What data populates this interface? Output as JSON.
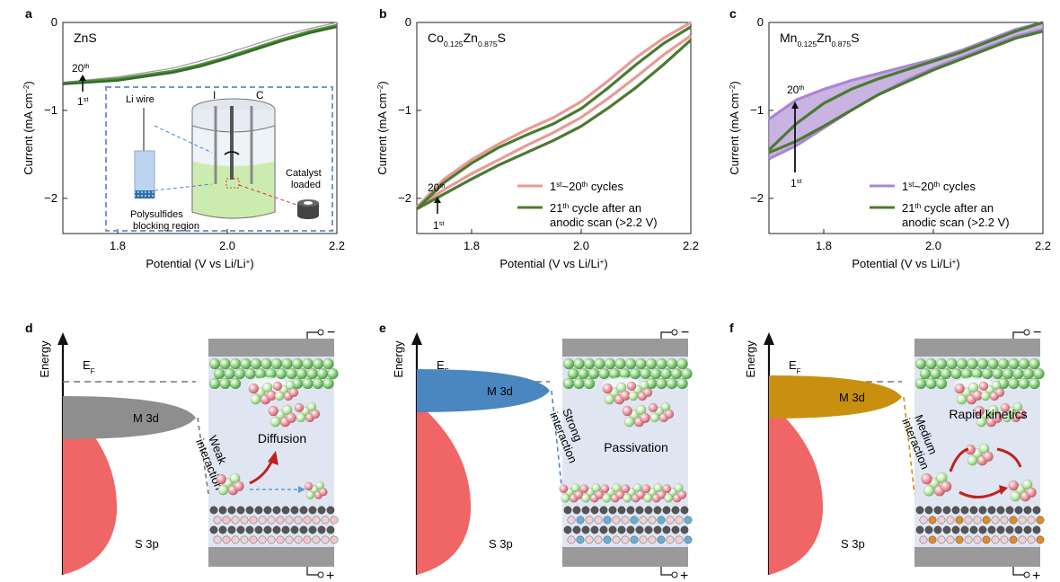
{
  "chart_data": [
    {
      "panel": "a",
      "type": "line",
      "title": "ZnS",
      "xlabel": "Potential (V vs Li/Li+)",
      "ylabel": "Current (mA cm−2)",
      "xlim": [
        1.7,
        2.2
      ],
      "ylim": [
        -2.4,
        0
      ],
      "xticks": [
        "1.8",
        "2.0",
        "2.2"
      ],
      "yticks": [
        "0",
        "−1",
        "−2"
      ],
      "cycle_labels": {
        "end": "20",
        "start": "1",
        "end_sup": "th",
        "start_sup": "st"
      },
      "series": [
        {
          "name": "",
          "x": [
            1.7,
            1.8,
            1.9,
            1.95,
            2.0,
            2.05,
            2.1,
            2.15,
            2.2
          ],
          "y": [
            -0.68,
            -0.62,
            -0.52,
            -0.44,
            -0.35,
            -0.25,
            -0.15,
            -0.07,
            0.0
          ],
          "color": "#9a9a9a"
        },
        {
          "name": "",
          "x": [
            1.7,
            1.8,
            1.9,
            1.95,
            2.0,
            2.05,
            2.1,
            2.15,
            2.2
          ],
          "y": [
            -0.69,
            -0.64,
            -0.55,
            -0.48,
            -0.39,
            -0.29,
            -0.19,
            -0.1,
            -0.03
          ],
          "color": "#5a8f3a"
        },
        {
          "name": "",
          "x": [
            1.7,
            1.8,
            1.9,
            1.95,
            2.0,
            2.05,
            2.1,
            2.15,
            2.2
          ],
          "y": [
            -0.7,
            -0.66,
            -0.57,
            -0.5,
            -0.41,
            -0.31,
            -0.21,
            -0.12,
            -0.05
          ],
          "color": "#2f6e2a"
        }
      ]
    },
    {
      "panel": "b",
      "type": "line",
      "title": "Co0.125Zn0.875S",
      "xlabel": "Potential (V vs Li/Li+)",
      "ylabel": "Current (mA cm−2)",
      "xlim": [
        1.7,
        2.2
      ],
      "ylim": [
        -2.4,
        0
      ],
      "xticks": [
        "1.8",
        "2.0",
        "2.2"
      ],
      "yticks": [
        "0",
        "−1",
        "−2"
      ],
      "cycle_labels": {
        "end": "20",
        "start": "1",
        "end_sup": "th",
        "start_sup": "st"
      },
      "series": [
        {
          "name": "1st~20th cycles",
          "x": [
            1.7,
            1.75,
            1.8,
            1.85,
            1.9,
            1.95,
            2.0,
            2.05,
            2.1,
            2.15,
            2.2
          ],
          "y": [
            -2.1,
            -1.78,
            -1.56,
            -1.38,
            -1.22,
            -1.08,
            -0.9,
            -0.66,
            -0.4,
            -0.18,
            0.0
          ],
          "color": "#e99a95"
        },
        {
          "name": "1st~20th cycles",
          "x": [
            1.7,
            1.75,
            1.8,
            1.85,
            1.9,
            1.95,
            2.0,
            2.05,
            2.1,
            2.15,
            2.2
          ],
          "y": [
            -2.1,
            -1.9,
            -1.72,
            -1.56,
            -1.4,
            -1.25,
            -1.08,
            -0.86,
            -0.62,
            -0.37,
            -0.15
          ],
          "color": "#e99a95"
        },
        {
          "name": "21th cycle after an anodic scan (>2.2 V)",
          "x": [
            1.7,
            1.75,
            1.8,
            1.85,
            1.9,
            1.95,
            2.0,
            2.05,
            2.1,
            2.15,
            2.2
          ],
          "y": [
            -2.12,
            -1.82,
            -1.6,
            -1.42,
            -1.28,
            -1.15,
            -0.98,
            -0.74,
            -0.48,
            -0.24,
            -0.05
          ],
          "color": "#4a7a30"
        },
        {
          "name": "21th cycle after an anodic scan (>2.2 V)",
          "x": [
            1.7,
            1.75,
            1.8,
            1.85,
            1.9,
            1.95,
            2.0,
            2.05,
            2.1,
            2.15,
            2.2
          ],
          "y": [
            -2.12,
            -1.95,
            -1.78,
            -1.62,
            -1.48,
            -1.34,
            -1.18,
            -0.97,
            -0.74,
            -0.48,
            -0.2
          ],
          "color": "#4a7a30"
        }
      ],
      "legend": [
        {
          "label": "1st~20th cycles",
          "color": "#e99a95"
        },
        {
          "label": "21th cycle after an anodic scan (>2.2 V)",
          "color": "#4a7a30"
        }
      ]
    },
    {
      "panel": "c",
      "type": "line",
      "title": "Mn0.125Zn0.875S",
      "xlabel": "Potential (V vs Li/Li+)",
      "ylabel": "Current (mA cm−2)",
      "xlim": [
        1.7,
        2.2
      ],
      "ylim": [
        -2.4,
        0
      ],
      "xticks": [
        "1.8",
        "2.0",
        "2.2"
      ],
      "yticks": [
        "0",
        "−1",
        "−2"
      ],
      "cycle_labels": {
        "end": "20",
        "start": "1",
        "end_sup": "th",
        "start_sup": "st"
      },
      "series": [
        {
          "name": "1st~20th cycles",
          "x": [
            1.7,
            1.75,
            1.8,
            1.85,
            1.9,
            1.95,
            2.0,
            2.05,
            2.1,
            2.15,
            2.2
          ],
          "y": [
            -1.1,
            -0.88,
            -0.76,
            -0.66,
            -0.58,
            -0.5,
            -0.42,
            -0.32,
            -0.2,
            -0.08,
            0.0
          ],
          "color": "#a987d1"
        },
        {
          "name": "1st~20th cycles",
          "x": [
            1.7,
            1.75,
            1.8,
            1.85,
            1.9,
            1.95,
            2.0,
            2.05,
            2.1,
            2.15,
            2.2
          ],
          "y": [
            -1.55,
            -1.4,
            -1.2,
            -1.0,
            -0.82,
            -0.66,
            -0.52,
            -0.4,
            -0.28,
            -0.16,
            -0.08
          ],
          "color": "#a987d1"
        },
        {
          "name": "21th cycle after an anodic scan (>2.2 V)",
          "x": [
            1.7,
            1.75,
            1.8,
            1.85,
            1.9,
            1.95,
            2.0,
            2.05,
            2.1,
            2.15,
            2.2
          ],
          "y": [
            -1.45,
            -1.15,
            -0.92,
            -0.76,
            -0.64,
            -0.54,
            -0.44,
            -0.34,
            -0.22,
            -0.1,
            0.0
          ],
          "color": "#4a7a30"
        },
        {
          "name": "21th cycle after an anodic scan (>2.2 V)",
          "x": [
            1.7,
            1.75,
            1.8,
            1.85,
            1.9,
            1.95,
            2.0,
            2.05,
            2.1,
            2.15,
            2.2
          ],
          "y": [
            -1.48,
            -1.35,
            -1.18,
            -1.0,
            -0.82,
            -0.68,
            -0.54,
            -0.42,
            -0.3,
            -0.18,
            -0.1
          ],
          "color": "#4a7a30"
        }
      ],
      "legend": [
        {
          "label": "1st~20th cycles",
          "color": "#a987d1"
        },
        {
          "label": "21th cycle after an anodic scan (>2.2 V)",
          "color": "#4a7a30"
        }
      ]
    }
  ],
  "panels": {
    "a": "a",
    "b": "b",
    "c": "c",
    "d": "d",
    "e": "e",
    "f": "f"
  },
  "inset": {
    "li_wire": "Li wire",
    "electrode_i": "I",
    "electrode_c": "C",
    "catalyst_line1": "Catalyst",
    "catalyst_line2": "loaded",
    "blocking_line1": "Polysulfides",
    "blocking_line2": "blocking region"
  },
  "diagrams": [
    {
      "panel": "d",
      "energy_label": "Energy",
      "fermi": "E",
      "fermi_sub": "F",
      "m3d": "M 3d",
      "s3p": "S 3p",
      "interaction_line1": "Weak",
      "interaction_line2": "interaction",
      "process": "Diffusion",
      "m3d_color": "#8e8e8e",
      "substrate_colors": [
        "#555555",
        "#f2c6cc"
      ]
    },
    {
      "panel": "e",
      "energy_label": "Energy",
      "fermi": "E",
      "fermi_sub": "F",
      "m3d": "M 3d",
      "s3p": "S 3p",
      "interaction_line1": "Strong",
      "interaction_line2": "interaction",
      "process": "Passivation",
      "m3d_color": "#4a86c0",
      "substrate_colors": [
        "#555555",
        "#6aaed6"
      ]
    },
    {
      "panel": "f",
      "energy_label": "Energy",
      "fermi": "E",
      "fermi_sub": "F",
      "m3d": "M 3d",
      "s3p": "S 3p",
      "interaction_line1": "Medium",
      "interaction_line2": "interaction",
      "process": "Rapid kinetics",
      "m3d_color": "#c8900e",
      "substrate_colors": [
        "#555555",
        "#e08a2a"
      ]
    }
  ],
  "terminals": {
    "minus": "−",
    "plus": "+"
  },
  "colors": {
    "green": "#4a7a30",
    "pink": "#e99a95",
    "purple": "#a987d1",
    "electrolyte": "#dfe6f1",
    "s3p": "#f06565",
    "bar": "#9a9a9a"
  }
}
